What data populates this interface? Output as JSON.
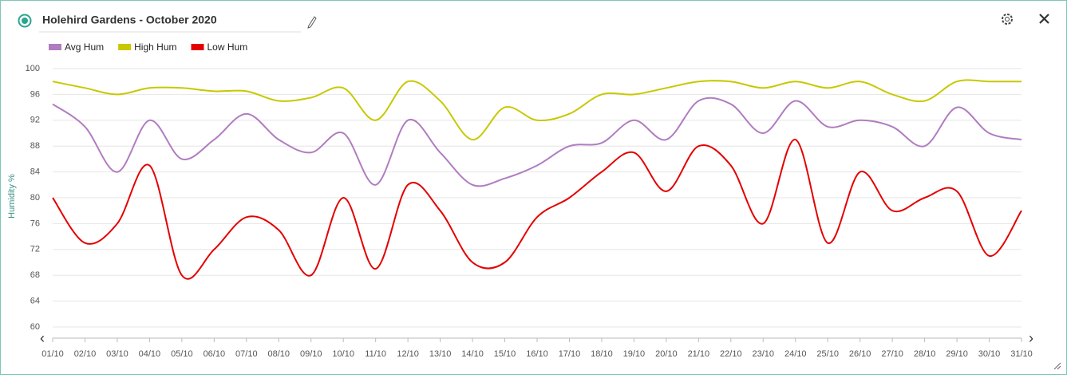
{
  "header": {
    "title": "Holehird Gardens - October 2020"
  },
  "chart_data": {
    "type": "line",
    "y_label": "Humidity %",
    "categories": [
      "01/10",
      "02/10",
      "03/10",
      "04/10",
      "05/10",
      "06/10",
      "07/10",
      "08/10",
      "09/10",
      "10/10",
      "11/10",
      "12/10",
      "13/10",
      "14/10",
      "15/10",
      "16/10",
      "17/10",
      "18/10",
      "19/10",
      "20/10",
      "21/10",
      "22/10",
      "23/10",
      "24/10",
      "25/10",
      "26/10",
      "27/10",
      "28/10",
      "29/10",
      "30/10",
      "31/10"
    ],
    "series": [
      {
        "name": "Avg Hum",
        "color": "#b07cc0",
        "values": [
          94.5,
          91,
          84,
          92,
          86,
          89,
          93,
          89,
          87,
          90,
          82,
          92,
          87,
          82,
          83,
          85,
          88,
          88.5,
          92,
          89,
          95,
          94.5,
          90,
          95,
          91,
          92,
          91,
          88,
          94,
          90,
          89
        ]
      },
      {
        "name": "High Hum",
        "color": "#c8c800",
        "values": [
          98,
          97,
          96,
          97,
          97,
          96.5,
          96.5,
          95,
          95.5,
          97,
          92,
          98,
          95,
          89,
          94,
          92,
          93,
          96,
          96,
          97,
          98,
          98,
          97,
          98,
          97,
          98,
          96,
          95,
          98,
          98,
          98
        ]
      },
      {
        "name": "Low Hum",
        "color": "#e40000",
        "values": [
          80,
          73,
          76,
          85,
          68,
          72,
          77,
          75,
          68,
          80,
          69,
          82,
          78,
          70,
          70,
          77,
          80,
          84,
          87,
          81,
          88,
          85,
          76,
          89,
          73,
          84,
          78,
          80,
          81,
          71,
          78
        ]
      }
    ],
    "ylim": [
      60,
      100
    ],
    "yticks": [
      60,
      64,
      68,
      72,
      76,
      80,
      84,
      88,
      92,
      96,
      100
    ],
    "grid": true
  }
}
